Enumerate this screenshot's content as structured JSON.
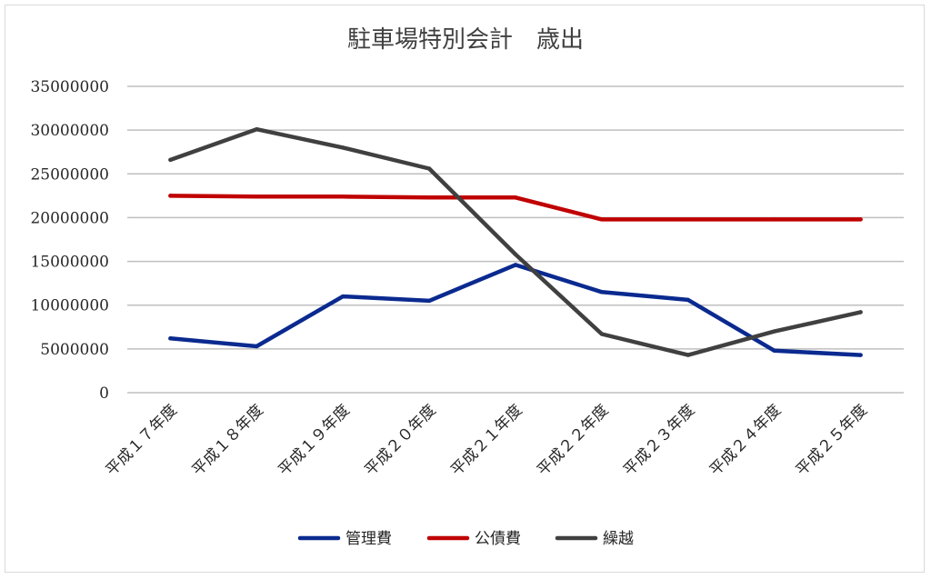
{
  "chart_data": {
    "type": "line",
    "title": "駐車場特別会計　歳出",
    "xlabel": "",
    "ylabel": "",
    "categories": [
      "平成１７年度",
      "平成１８年度",
      "平成１９年度",
      "平成２０年度",
      "平成２１年度",
      "平成２２年度",
      "平成２３年度",
      "平成２４年度",
      "平成２５年度"
    ],
    "ylim": [
      0,
      35000000
    ],
    "yticks": [
      "0",
      "5000000",
      "10000000",
      "15000000",
      "20000000",
      "25000000",
      "30000000",
      "35000000"
    ],
    "grid": true,
    "legend_position": "bottom",
    "series": [
      {
        "name": "管理費",
        "color": "#0a2a8f",
        "values": [
          6200000,
          5300000,
          11000000,
          10500000,
          14600000,
          11500000,
          10600000,
          4800000,
          4300000
        ]
      },
      {
        "name": "公債費",
        "color": "#c00000",
        "values": [
          22500000,
          22400000,
          22400000,
          22300000,
          22300000,
          19800000,
          19800000,
          19800000,
          19800000
        ]
      },
      {
        "name": "繰越",
        "color": "#404040",
        "values": [
          26600000,
          30100000,
          28000000,
          25600000,
          15800000,
          6700000,
          4300000,
          7000000,
          9200000
        ]
      }
    ]
  }
}
